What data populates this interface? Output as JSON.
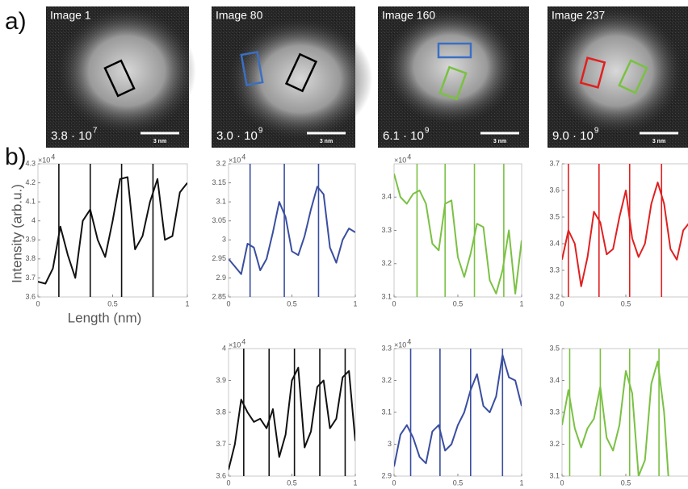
{
  "panel_labels": [
    "a)",
    "b)"
  ],
  "images": [
    {
      "title": "Image 1",
      "dose": "3.8 · 10",
      "dose_exp": "7",
      "scalebar": "3 nm"
    },
    {
      "title": "Image 80",
      "dose": "3.0 · 10",
      "dose_exp": "9",
      "scalebar": "3 nm"
    },
    {
      "title": "Image 160",
      "dose": "6.1 · 10",
      "dose_exp": "9",
      "scalebar": "3 nm"
    },
    {
      "title": "Image 237",
      "dose": "9.0 · 10",
      "dose_exp": "9",
      "scalebar": "3 nm"
    }
  ],
  "chart_data": [
    {
      "type": "line",
      "ylabel": "Intensity (arb.u.)",
      "xlabel": "Length (nm)",
      "multiplier": "×10",
      "multiplier_exp": "4",
      "x": [
        0,
        0.05,
        0.1,
        0.15,
        0.2,
        0.25,
        0.3,
        0.35,
        0.4,
        0.45,
        0.5,
        0.55,
        0.6,
        0.65,
        0.7,
        0.75,
        0.8,
        0.85,
        0.9,
        0.95,
        1
      ],
      "series": [
        {
          "color": "#111111",
          "values": [
            3.68,
            3.67,
            3.75,
            3.97,
            3.82,
            3.7,
            4.0,
            4.06,
            3.9,
            3.81,
            4.0,
            4.22,
            4.23,
            3.85,
            3.92,
            4.1,
            4.22,
            3.9,
            3.92,
            4.15,
            4.2
          ]
        }
      ],
      "vlines": [
        0.14,
        0.35,
        0.56,
        0.77
      ],
      "xlim": [
        0,
        1
      ],
      "xticks": [
        0,
        0.5,
        1
      ],
      "ylim": [
        3.6,
        4.3
      ],
      "yticks": [
        3.6,
        3.7,
        3.8,
        3.9,
        4,
        4.1,
        4.2,
        4.3
      ]
    },
    {
      "type": "line",
      "multiplier": "×10",
      "multiplier_exp": "4",
      "x": [
        0,
        0.05,
        0.1,
        0.15,
        0.2,
        0.25,
        0.3,
        0.35,
        0.4,
        0.45,
        0.5,
        0.55,
        0.6,
        0.65,
        0.7,
        0.75,
        0.8,
        0.85,
        0.9,
        0.95,
        1
      ],
      "series": [
        {
          "color": "#3a4ea0",
          "values": [
            2.95,
            2.93,
            2.91,
            2.99,
            2.98,
            2.92,
            2.95,
            3.02,
            3.1,
            3.06,
            2.97,
            2.96,
            3.01,
            3.08,
            3.14,
            3.12,
            2.98,
            2.94,
            3.0,
            3.03,
            3.02
          ]
        }
      ],
      "vlines": [
        0.17,
        0.44,
        0.71
      ],
      "xlim": [
        0,
        1
      ],
      "xticks": [
        0,
        0.5,
        1
      ],
      "ylim": [
        2.85,
        3.2
      ],
      "yticks": [
        2.85,
        2.9,
        2.95,
        3,
        3.05,
        3.1,
        3.15,
        3.2
      ]
    },
    {
      "type": "line",
      "multiplier": "×10",
      "multiplier_exp": "4",
      "x": [
        0,
        0.05,
        0.1,
        0.15,
        0.2,
        0.25,
        0.3,
        0.35,
        0.4,
        0.45,
        0.5,
        0.55,
        0.6,
        0.65,
        0.7,
        0.75,
        0.8,
        0.85,
        0.9,
        0.95,
        1
      ],
      "series": [
        {
          "color": "#7ac143",
          "values": [
            3.47,
            3.4,
            3.38,
            3.41,
            3.42,
            3.38,
            3.26,
            3.24,
            3.38,
            3.39,
            3.22,
            3.16,
            3.23,
            3.32,
            3.31,
            3.15,
            3.11,
            3.18,
            3.3,
            3.11,
            3.27
          ]
        }
      ],
      "vlines": [
        0.18,
        0.4,
        0.63,
        0.86
      ],
      "xlim": [
        0,
        1
      ],
      "xticks": [
        0,
        0.5,
        1
      ],
      "ylim": [
        3.1,
        3.5
      ],
      "yticks": [
        3.1,
        3.2,
        3.3,
        3.4
      ]
    },
    {
      "type": "line",
      "x": [
        0,
        0.05,
        0.1,
        0.15,
        0.2,
        0.25,
        0.3,
        0.35,
        0.4,
        0.45,
        0.5,
        0.55,
        0.6,
        0.65,
        0.7,
        0.75,
        0.8,
        0.85,
        0.9,
        0.95,
        1
      ],
      "series": [
        {
          "color": "#e02020",
          "values": [
            3.34,
            3.45,
            3.4,
            3.24,
            3.35,
            3.52,
            3.48,
            3.36,
            3.38,
            3.5,
            3.6,
            3.42,
            3.35,
            3.4,
            3.55,
            3.63,
            3.55,
            3.38,
            3.34,
            3.45,
            3.48
          ]
        }
      ],
      "vlines": [
        0.05,
        0.29,
        0.53,
        0.78
      ],
      "xlim": [
        0,
        1
      ],
      "xticks": [
        0,
        0.5
      ],
      "ylim": [
        3.2,
        3.7
      ],
      "yticks": [
        3.2,
        3.3,
        3.4,
        3.5,
        3.6,
        3.7
      ]
    },
    {
      "type": "line",
      "multiplier": "×10",
      "multiplier_exp": "4",
      "x": [
        0,
        0.05,
        0.1,
        0.15,
        0.2,
        0.25,
        0.3,
        0.35,
        0.4,
        0.45,
        0.5,
        0.55,
        0.6,
        0.65,
        0.7,
        0.75,
        0.8,
        0.85,
        0.9,
        0.95,
        1
      ],
      "series": [
        {
          "color": "#111111",
          "values": [
            3.62,
            3.7,
            3.84,
            3.8,
            3.77,
            3.78,
            3.75,
            3.81,
            3.66,
            3.73,
            3.9,
            3.94,
            3.69,
            3.74,
            3.88,
            3.9,
            3.75,
            3.78,
            3.91,
            3.93,
            3.71
          ]
        }
      ],
      "vlines": [
        0.12,
        0.32,
        0.52,
        0.72,
        0.92
      ],
      "xlim": [
        0,
        1
      ],
      "xticks": [
        0,
        0.5,
        1
      ],
      "ylim": [
        3.6,
        4
      ],
      "yticks": [
        3.6,
        3.7,
        3.8,
        3.9,
        4
      ]
    },
    {
      "type": "line",
      "multiplier": "×10",
      "multiplier_exp": "4",
      "x": [
        0,
        0.05,
        0.1,
        0.15,
        0.2,
        0.25,
        0.3,
        0.35,
        0.4,
        0.45,
        0.5,
        0.55,
        0.6,
        0.65,
        0.7,
        0.75,
        0.8,
        0.85,
        0.9,
        0.95,
        1
      ],
      "series": [
        {
          "color": "#3a4ea0",
          "values": [
            2.93,
            3.03,
            3.06,
            3.02,
            2.96,
            2.94,
            3.04,
            3.06,
            2.98,
            3.0,
            3.06,
            3.1,
            3.17,
            3.22,
            3.12,
            3.1,
            3.15,
            3.28,
            3.21,
            3.2,
            3.12
          ]
        }
      ],
      "vlines": [
        0.13,
        0.36,
        0.6,
        0.85
      ],
      "xlim": [
        0,
        1
      ],
      "xticks": [
        0,
        0.5,
        1
      ],
      "ylim": [
        2.9,
        3.3
      ],
      "yticks": [
        2.9,
        3,
        3.1,
        3.2,
        3.3
      ]
    },
    {
      "type": "line",
      "x": [
        0,
        0.05,
        0.1,
        0.15,
        0.2,
        0.25,
        0.3,
        0.35,
        0.4,
        0.45,
        0.5,
        0.55,
        0.6,
        0.65,
        0.7,
        0.75,
        0.8,
        0.85,
        0.9,
        0.95,
        1
      ],
      "series": [
        {
          "color": "#7ac143",
          "values": [
            3.26,
            3.37,
            3.25,
            3.19,
            3.25,
            3.28,
            3.38,
            3.22,
            3.18,
            3.26,
            3.43,
            3.36,
            3.1,
            3.15,
            3.39,
            3.46,
            3.3,
            3.0,
            null,
            null,
            null
          ]
        }
      ],
      "vlines": [
        0.06,
        0.3,
        0.53,
        0.76
      ],
      "xlim": [
        0,
        1
      ],
      "xticks": [
        0,
        0.5
      ],
      "ylim": [
        3.1,
        3.5
      ],
      "yticks": [
        3.1,
        3.2,
        3.3,
        3.4,
        3.5
      ]
    }
  ]
}
